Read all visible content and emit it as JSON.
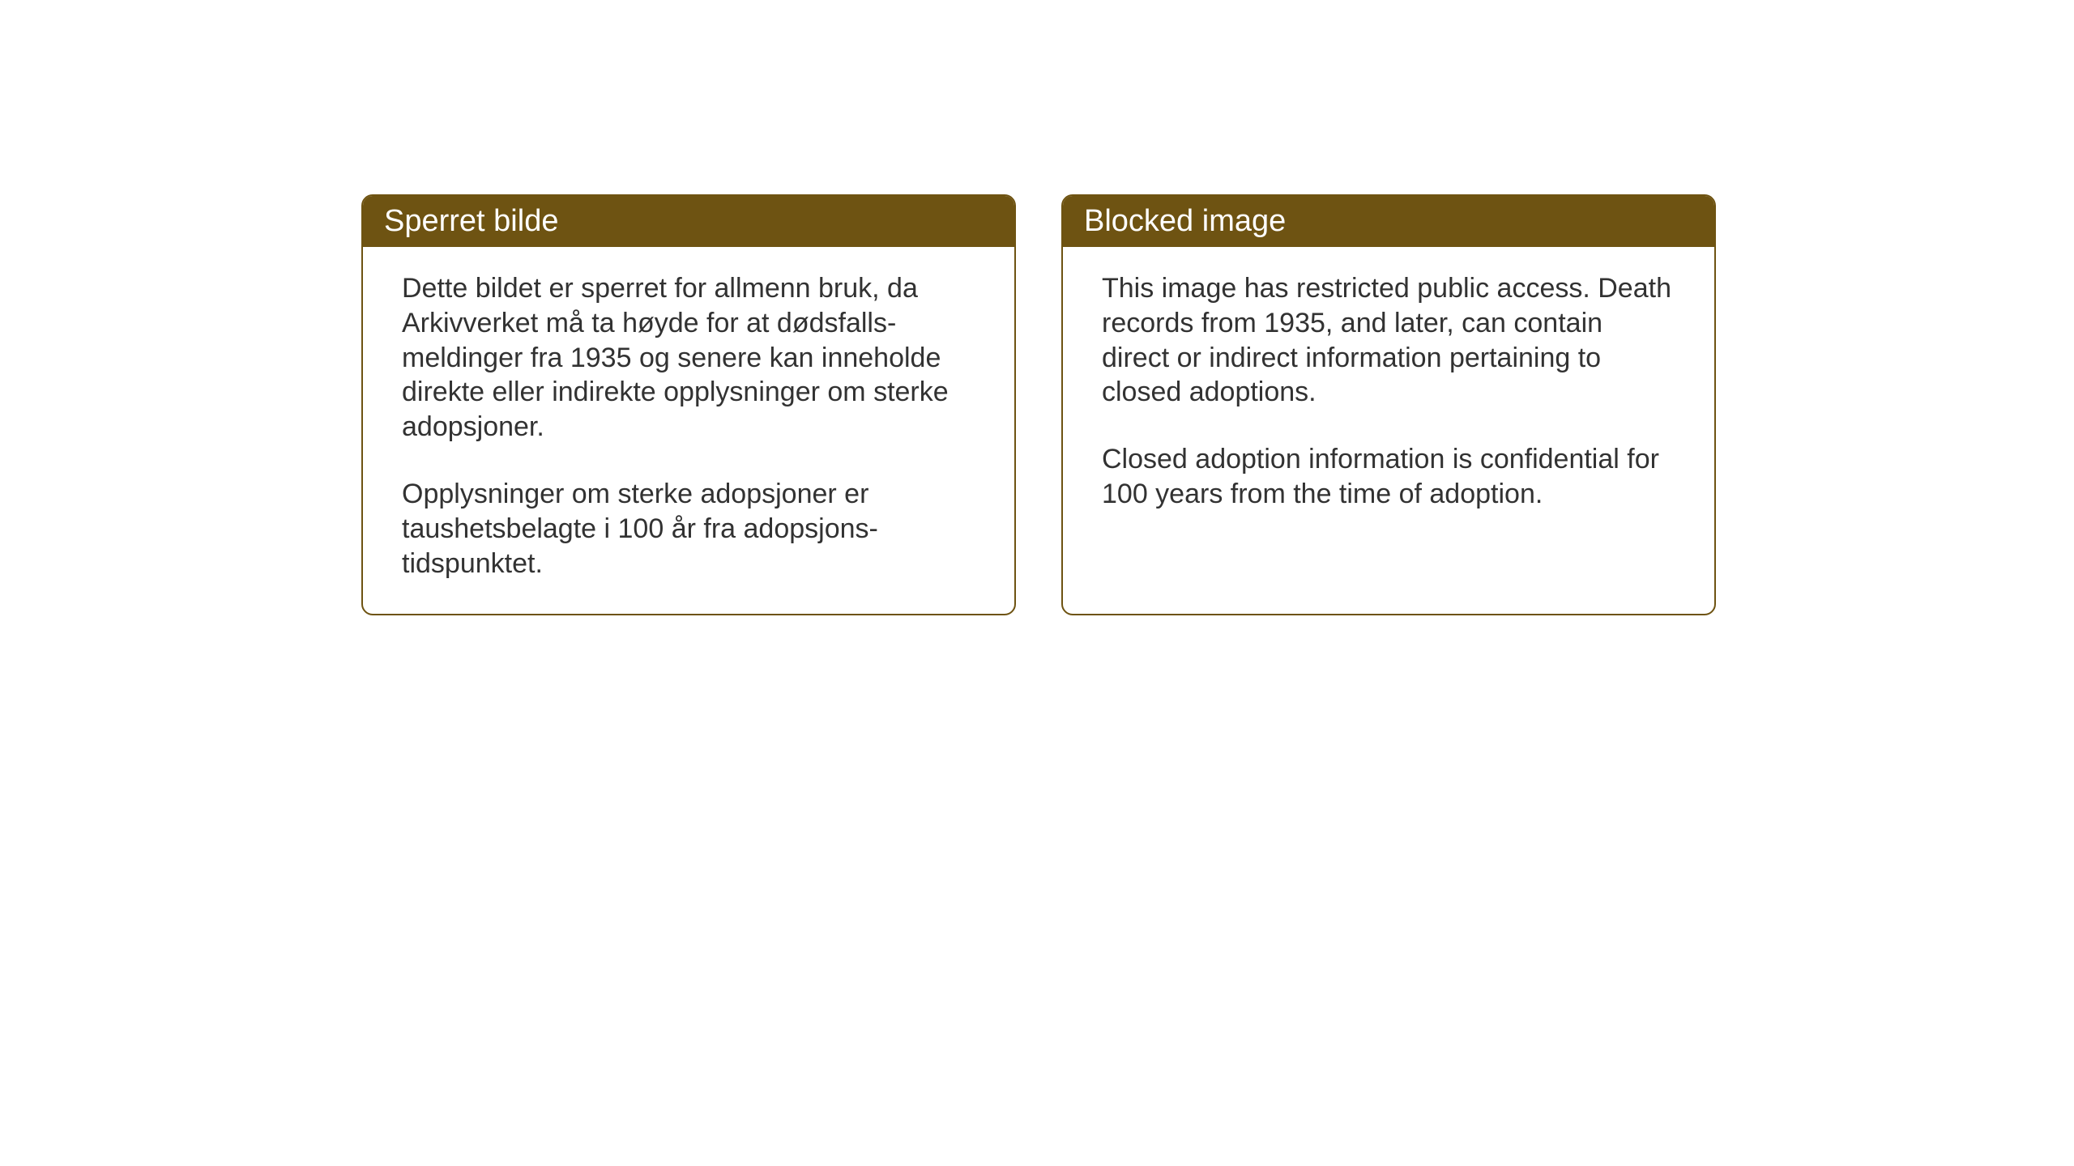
{
  "layout": {
    "background_color": "#ffffff",
    "card_border_color": "#6e5312",
    "card_header_bg": "#6e5312",
    "card_header_text_color": "#ffffff",
    "card_body_text_color": "#323232",
    "card_border_radius": 14,
    "header_fontsize": 38,
    "body_fontsize": 34
  },
  "cards": {
    "norwegian": {
      "title": "Sperret bilde",
      "paragraph1": "Dette bildet er sperret for allmenn bruk, da Arkivverket må ta høyde for at dødsfalls-meldinger fra 1935 og senere kan inneholde direkte eller indirekte opplysninger om sterke adopsjoner.",
      "paragraph2": "Opplysninger om sterke adopsjoner er taushetsbelagte i 100 år fra adopsjons-tidspunktet."
    },
    "english": {
      "title": "Blocked image",
      "paragraph1": "This image has restricted public access. Death records from 1935, and later, can contain direct or indirect information pertaining to closed adoptions.",
      "paragraph2": "Closed adoption information is confidential for 100 years from the time of adoption."
    }
  }
}
